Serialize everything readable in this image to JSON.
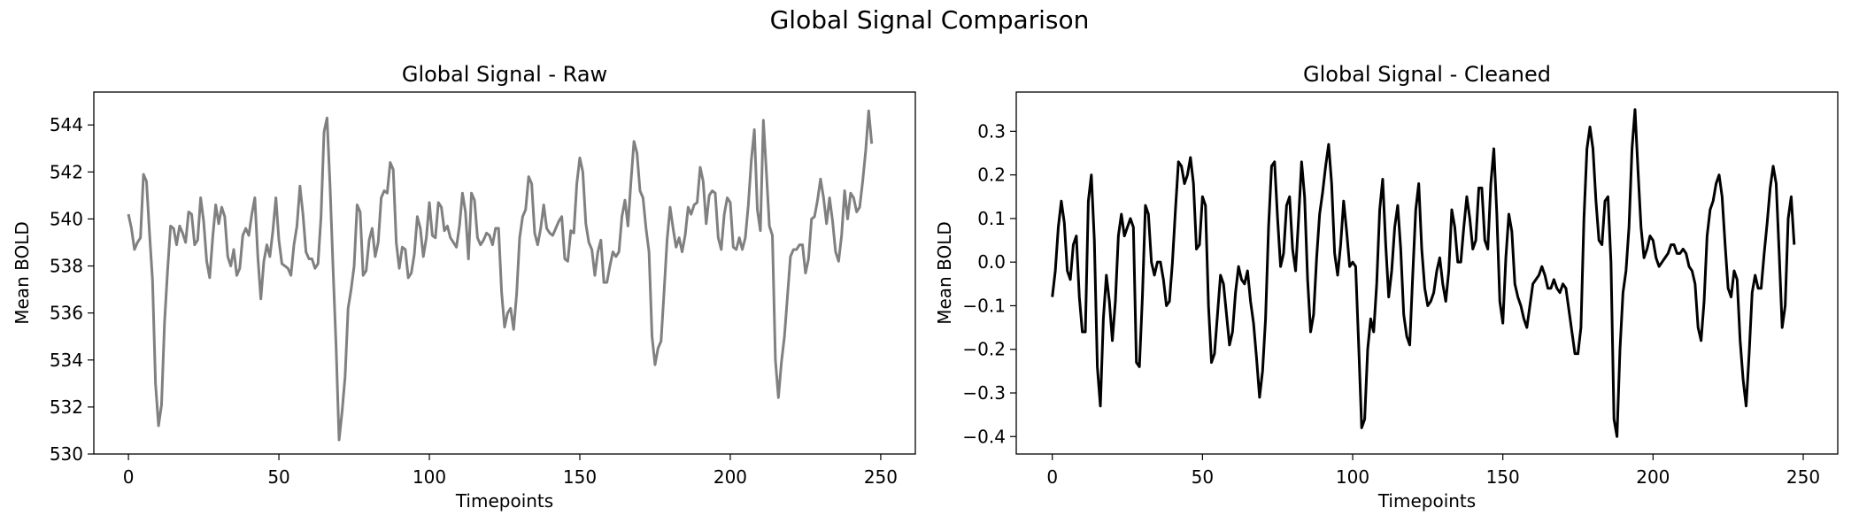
{
  "figure": {
    "suptitle": "Global Signal Comparison"
  },
  "colors": {
    "raw_line": "#808080",
    "cleaned_line": "#000000",
    "axes": "#000000"
  },
  "chart_data": [
    {
      "type": "line",
      "title": "Global Signal - Raw",
      "xlabel": "Timepoints",
      "ylabel": "Mean BOLD",
      "xlim": [
        -11.5,
        261.5
      ],
      "ylim": [
        530.0,
        545.4
      ],
      "xticks": [
        0,
        50,
        100,
        150,
        200,
        250
      ],
      "yticks": [
        530,
        532,
        534,
        536,
        538,
        540,
        542,
        544
      ],
      "ytick_labels": [
        "530",
        "532",
        "534",
        "536",
        "538",
        "540",
        "542",
        "544"
      ],
      "grid": false,
      "series": [
        {
          "color": "#808080",
          "x_start": 0,
          "x_step": 1,
          "values": [
            540.2,
            539.6,
            538.7,
            539.0,
            539.2,
            541.9,
            541.6,
            539.4,
            537.4,
            533.0,
            531.2,
            532.1,
            535.6,
            537.8,
            539.7,
            539.6,
            538.9,
            539.7,
            539.4,
            539.0,
            540.3,
            540.2,
            538.9,
            539.1,
            540.9,
            539.9,
            538.2,
            537.5,
            539.2,
            540.6,
            539.8,
            540.5,
            540.1,
            538.4,
            538.0,
            538.7,
            537.6,
            537.9,
            539.3,
            539.6,
            539.3,
            540.2,
            540.9,
            538.4,
            536.6,
            538.2,
            538.9,
            538.4,
            539.5,
            540.9,
            539.1,
            538.1,
            538.0,
            537.9,
            537.6,
            538.9,
            539.7,
            541.4,
            540.2,
            538.6,
            538.3,
            538.3,
            537.9,
            538.1,
            540.1,
            543.7,
            544.3,
            541.4,
            537.9,
            534.6,
            530.6,
            531.8,
            533.3,
            536.2,
            537.0,
            538.0,
            540.6,
            540.3,
            537.6,
            537.8,
            539.1,
            539.6,
            538.4,
            539.0,
            540.9,
            541.2,
            541.1,
            542.4,
            542.1,
            539.0,
            537.9,
            538.8,
            538.7,
            537.5,
            537.7,
            538.5,
            540.1,
            539.6,
            538.4,
            539.2,
            540.7,
            539.3,
            539.2,
            540.7,
            540.5,
            539.5,
            539.7,
            539.2,
            539.0,
            538.8,
            539.7,
            541.1,
            540.3,
            538.3,
            541.1,
            540.8,
            539.2,
            538.9,
            539.1,
            539.4,
            539.3,
            538.9,
            539.6,
            539.6,
            536.9,
            535.4,
            536.0,
            536.2,
            535.3,
            536.8,
            539.2,
            540.1,
            540.4,
            541.8,
            541.5,
            539.4,
            538.9,
            539.6,
            540.6,
            539.6,
            539.4,
            539.3,
            539.6,
            539.9,
            540.1,
            538.3,
            538.2,
            539.5,
            539.4,
            541.5,
            542.6,
            542.0,
            539.8,
            539.0,
            538.7,
            537.6,
            538.6,
            539.1,
            537.3,
            537.3,
            538.0,
            538.6,
            538.4,
            538.6,
            540.1,
            540.8,
            539.7,
            541.6,
            543.3,
            542.8,
            541.2,
            540.9,
            539.6,
            538.6,
            535.0,
            533.8,
            534.5,
            534.8,
            536.9,
            539.1,
            540.5,
            539.6,
            538.8,
            539.2,
            538.6,
            539.3,
            540.5,
            540.2,
            540.6,
            540.7,
            542.2,
            541.6,
            539.8,
            541.0,
            541.2,
            541.1,
            539.2,
            538.7,
            540.2,
            540.9,
            540.7,
            538.8,
            538.7,
            539.2,
            538.7,
            539.2,
            540.6,
            542.5,
            543.8,
            540.4,
            539.5,
            544.2,
            542.0,
            539.7,
            539.3,
            534.0,
            532.4,
            533.9,
            535.0,
            536.7,
            538.4,
            538.7,
            538.7,
            538.9,
            538.9,
            537.7,
            538.3,
            540.0,
            540.1,
            540.8,
            541.7,
            540.9,
            539.8,
            540.9,
            539.9,
            538.6,
            538.2,
            539.3,
            541.2,
            540.0,
            541.1,
            540.9,
            540.3,
            540.5,
            541.6,
            542.9,
            544.6,
            543.2
          ]
        }
      ]
    },
    {
      "type": "line",
      "title": "Global Signal - Cleaned",
      "xlabel": "Timepoints",
      "ylabel": "Mean BOLD",
      "xlim": [
        -12,
        261.5
      ],
      "ylim": [
        -0.44,
        0.39
      ],
      "xticks": [
        0,
        50,
        100,
        150,
        200,
        250
      ],
      "yticks": [
        -0.4,
        -0.3,
        -0.2,
        -0.1,
        0.0,
        0.1,
        0.2,
        0.3
      ],
      "ytick_labels": [
        "−0.4",
        "−0.3",
        "−0.2",
        "−0.1",
        "0.0",
        "0.1",
        "0.2",
        "0.3"
      ],
      "grid": false,
      "series": [
        {
          "color": "#000000",
          "x_start": 0,
          "x_step": 1,
          "values": [
            -0.08,
            -0.02,
            0.08,
            0.14,
            0.09,
            -0.02,
            -0.04,
            0.04,
            0.06,
            -0.08,
            -0.16,
            -0.16,
            0.14,
            0.2,
            0.05,
            -0.24,
            -0.33,
            -0.13,
            -0.03,
            -0.09,
            -0.18,
            -0.09,
            0.06,
            0.11,
            0.06,
            0.08,
            0.1,
            0.08,
            -0.23,
            -0.24,
            -0.08,
            0.13,
            0.11,
            0.0,
            -0.03,
            0.0,
            0.0,
            -0.04,
            -0.1,
            -0.09,
            0.0,
            0.12,
            0.23,
            0.22,
            0.18,
            0.2,
            0.24,
            0.18,
            0.03,
            0.04,
            0.15,
            0.13,
            -0.1,
            -0.23,
            -0.21,
            -0.12,
            -0.03,
            -0.05,
            -0.12,
            -0.19,
            -0.16,
            -0.07,
            -0.01,
            -0.04,
            -0.05,
            -0.02,
            -0.09,
            -0.14,
            -0.22,
            -0.31,
            -0.25,
            -0.13,
            0.08,
            0.22,
            0.23,
            0.1,
            -0.01,
            0.02,
            0.13,
            0.15,
            0.03,
            -0.02,
            0.1,
            0.23,
            0.15,
            -0.04,
            -0.16,
            -0.12,
            0.01,
            0.11,
            0.16,
            0.22,
            0.27,
            0.18,
            0.02,
            -0.03,
            0.04,
            0.14,
            0.07,
            -0.01,
            0.0,
            -0.01,
            -0.19,
            -0.38,
            -0.36,
            -0.2,
            -0.13,
            -0.16,
            -0.05,
            0.12,
            0.19,
            0.04,
            -0.08,
            -0.02,
            0.08,
            0.13,
            0.03,
            -0.12,
            -0.17,
            -0.19,
            -0.03,
            0.12,
            0.18,
            0.03,
            -0.06,
            -0.1,
            -0.09,
            -0.07,
            -0.02,
            0.01,
            -0.05,
            -0.09,
            -0.02,
            0.12,
            0.08,
            0.0,
            0.0,
            0.08,
            0.15,
            0.1,
            0.03,
            0.05,
            0.17,
            0.17,
            0.05,
            0.03,
            0.18,
            0.26,
            0.11,
            -0.09,
            -0.14,
            0.01,
            0.11,
            0.07,
            -0.05,
            -0.08,
            -0.1,
            -0.13,
            -0.15,
            -0.1,
            -0.05,
            -0.04,
            -0.03,
            -0.01,
            -0.03,
            -0.06,
            -0.06,
            -0.04,
            -0.06,
            -0.07,
            -0.05,
            -0.06,
            -0.11,
            -0.16,
            -0.21,
            -0.21,
            -0.15,
            0.1,
            0.26,
            0.31,
            0.26,
            0.14,
            0.05,
            0.04,
            0.14,
            0.15,
            0.0,
            -0.36,
            -0.4,
            -0.2,
            -0.07,
            -0.02,
            0.08,
            0.26,
            0.35,
            0.21,
            0.08,
            0.01,
            0.03,
            0.06,
            0.05,
            0.01,
            -0.01,
            0.0,
            0.01,
            0.02,
            0.04,
            0.04,
            0.02,
            0.02,
            0.03,
            0.02,
            -0.01,
            -0.02,
            -0.05,
            -0.15,
            -0.18,
            -0.09,
            0.06,
            0.12,
            0.14,
            0.18,
            0.2,
            0.15,
            0.04,
            -0.06,
            -0.08,
            -0.02,
            -0.04,
            -0.18,
            -0.27,
            -0.33,
            -0.21,
            -0.07,
            -0.03,
            -0.06,
            -0.06,
            0.02,
            0.09,
            0.17,
            0.22,
            0.18,
            0.02,
            -0.15,
            -0.1,
            0.1,
            0.15,
            0.04
          ]
        }
      ]
    }
  ]
}
